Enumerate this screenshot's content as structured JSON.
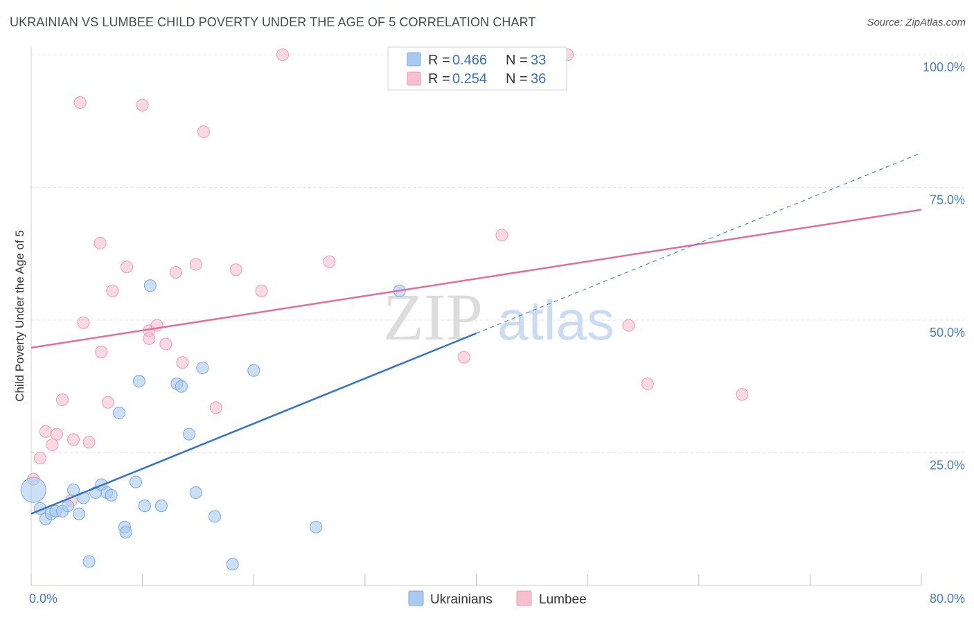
{
  "header": {
    "title": "UKRAINIAN VS LUMBEE CHILD POVERTY UNDER THE AGE OF 5 CORRELATION CHART",
    "source": "Source: ZipAtlas.com"
  },
  "watermark": {
    "zip": "ZIP",
    "atlas": "atlas"
  },
  "legend": {
    "r_label": "R =",
    "n_label": "N =",
    "entries": [
      {
        "r": "0.466",
        "n": "33"
      },
      {
        "r": "0.254",
        "n": "36"
      }
    ]
  },
  "bottom_legend": [
    "Ukrainians",
    "Lumbee"
  ],
  "colors": {
    "ukrainians_fill": "#a9c9f0",
    "ukrainians_stroke": "#7aa8e0",
    "ukrainians_line": "#2f74d0",
    "lumbee_fill": "#f7bfd0",
    "lumbee_stroke": "#ec9ab5",
    "lumbee_line": "#e0709a",
    "tick_text": "#4a7cc4",
    "grid": "#e3e3e3"
  },
  "chart_data": {
    "type": "scatter",
    "title": "UKRAINIAN VS LUMBEE CHILD POVERTY UNDER THE AGE OF 5 CORRELATION CHART",
    "xlabel": "",
    "ylabel": "Child Poverty Under the Age of 5",
    "xlim": [
      0,
      80
    ],
    "ylim": [
      0,
      100
    ],
    "x_tick_labels": [
      {
        "value": 0,
        "label": "0.0%"
      },
      {
        "value": 80,
        "label": "80.0%"
      }
    ],
    "y_tick_labels": [
      {
        "value": 25,
        "label": "25.0%"
      },
      {
        "value": 50,
        "label": "50.0%"
      },
      {
        "value": 75,
        "label": "75.0%"
      },
      {
        "value": 100,
        "label": "100.0%"
      }
    ],
    "grid": true,
    "legend_position": "top-center",
    "series": [
      {
        "name": "Ukrainians",
        "r": 0.466,
        "n": 33,
        "trend": {
          "x": [
            0,
            40
          ],
          "y": [
            13.5,
            47.5
          ],
          "extended_x": [
            40,
            80
          ],
          "extended_y": [
            47.5,
            81.5
          ]
        },
        "points": [
          {
            "x": 0.2,
            "y": 18.0,
            "big": true
          },
          {
            "x": 0.8,
            "y": 14.5
          },
          {
            "x": 1.3,
            "y": 12.5
          },
          {
            "x": 1.8,
            "y": 13.5
          },
          {
            "x": 2.2,
            "y": 14.0
          },
          {
            "x": 2.8,
            "y": 14.0
          },
          {
            "x": 3.3,
            "y": 15.0
          },
          {
            "x": 3.8,
            "y": 18.0
          },
          {
            "x": 4.3,
            "y": 13.5
          },
          {
            "x": 4.7,
            "y": 16.5
          },
          {
            "x": 5.2,
            "y": 4.5
          },
          {
            "x": 5.8,
            "y": 17.5
          },
          {
            "x": 6.3,
            "y": 19.0
          },
          {
            "x": 6.8,
            "y": 17.5
          },
          {
            "x": 7.2,
            "y": 17.0
          },
          {
            "x": 7.9,
            "y": 32.5
          },
          {
            "x": 8.4,
            "y": 11.0
          },
          {
            "x": 8.5,
            "y": 10.0
          },
          {
            "x": 9.4,
            "y": 19.5
          },
          {
            "x": 9.7,
            "y": 38.5
          },
          {
            "x": 10.2,
            "y": 15.0
          },
          {
            "x": 10.7,
            "y": 56.5
          },
          {
            "x": 11.7,
            "y": 15.0
          },
          {
            "x": 13.1,
            "y": 38.0
          },
          {
            "x": 13.5,
            "y": 37.5
          },
          {
            "x": 14.2,
            "y": 28.5
          },
          {
            "x": 14.8,
            "y": 17.5
          },
          {
            "x": 15.4,
            "y": 41.0
          },
          {
            "x": 16.5,
            "y": 13.0
          },
          {
            "x": 18.1,
            "y": 4.0
          },
          {
            "x": 20.0,
            "y": 40.5
          },
          {
            "x": 25.6,
            "y": 11.0
          },
          {
            "x": 33.1,
            "y": 55.5
          }
        ]
      },
      {
        "name": "Lumbee",
        "r": 0.254,
        "n": 36,
        "trend": {
          "x": [
            0,
            80
          ],
          "y": [
            44.8,
            70.8
          ]
        },
        "points": [
          {
            "x": 0.2,
            "y": 20.0
          },
          {
            "x": 0.8,
            "y": 24.0
          },
          {
            "x": 1.3,
            "y": 29.0
          },
          {
            "x": 1.9,
            "y": 26.5
          },
          {
            "x": 2.3,
            "y": 28.5
          },
          {
            "x": 2.8,
            "y": 35.0
          },
          {
            "x": 3.6,
            "y": 16.0
          },
          {
            "x": 3.8,
            "y": 27.5
          },
          {
            "x": 4.4,
            "y": 91.0
          },
          {
            "x": 4.7,
            "y": 49.5
          },
          {
            "x": 5.2,
            "y": 27.0
          },
          {
            "x": 6.2,
            "y": 64.5
          },
          {
            "x": 6.3,
            "y": 44.0
          },
          {
            "x": 6.9,
            "y": 34.5
          },
          {
            "x": 7.3,
            "y": 55.5
          },
          {
            "x": 8.6,
            "y": 60.0
          },
          {
            "x": 10.0,
            "y": 90.5
          },
          {
            "x": 10.6,
            "y": 48.0
          },
          {
            "x": 10.6,
            "y": 46.5
          },
          {
            "x": 11.3,
            "y": 49.0
          },
          {
            "x": 12.1,
            "y": 45.5
          },
          {
            "x": 13.0,
            "y": 59.0
          },
          {
            "x": 13.6,
            "y": 42.0
          },
          {
            "x": 14.8,
            "y": 60.5
          },
          {
            "x": 15.5,
            "y": 85.5
          },
          {
            "x": 16.6,
            "y": 33.5
          },
          {
            "x": 18.4,
            "y": 59.5
          },
          {
            "x": 20.7,
            "y": 55.5
          },
          {
            "x": 22.6,
            "y": 100.0
          },
          {
            "x": 26.8,
            "y": 61.0
          },
          {
            "x": 38.9,
            "y": 43.0
          },
          {
            "x": 42.3,
            "y": 66.0
          },
          {
            "x": 48.2,
            "y": 100.0
          },
          {
            "x": 53.7,
            "y": 49.0
          },
          {
            "x": 55.4,
            "y": 38.0
          },
          {
            "x": 63.9,
            "y": 36.0
          }
        ]
      }
    ]
  }
}
